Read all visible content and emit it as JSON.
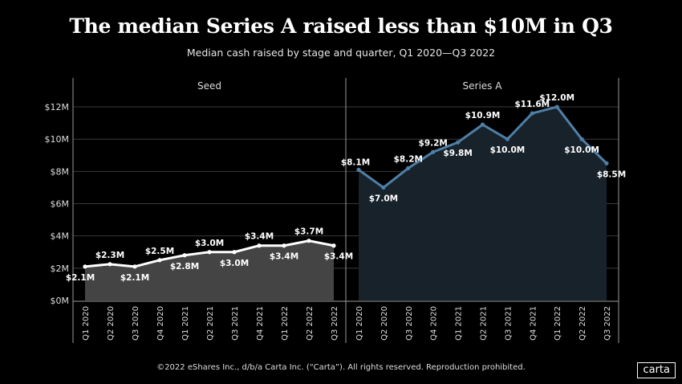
{
  "title": "The median Series A raised less than $10M in Q3",
  "subtitle": "Median cash raised by stage and quarter, Q1 2020—Q3 2022",
  "footer": "©2022 eShares Inc., d/b/a Carta Inc. (“Carta”). All rights reserved. Reproduction prohibited.",
  "logo": "carta",
  "chart_data": [
    {
      "type": "area",
      "panel_title": "Seed",
      "categories": [
        "Q1 2020",
        "Q2 2020",
        "Q3 2020",
        "Q4 2020",
        "Q1 2021",
        "Q2 2021",
        "Q3 2021",
        "Q4 2021",
        "Q1 2022",
        "Q2 2022",
        "Q3 2022"
      ],
      "values": [
        2.1,
        2.25,
        2.1,
        2.5,
        2.8,
        3.0,
        3.0,
        3.4,
        3.4,
        3.7,
        3.4
      ],
      "data_labels": [
        "$2.1M",
        "$2.3M",
        "$2.1M",
        "$2.5M",
        "$2.8M",
        "$3.0M",
        "$3.0M",
        "$3.4M",
        "$3.4M",
        "$3.7M",
        "$3.4M"
      ],
      "line_color": "#ffffff",
      "fill_color": "#444444",
      "ylim": [
        0,
        12
      ],
      "yticks": [
        "$0M",
        "$2M",
        "$4M",
        "$6M",
        "$8M",
        "$10M",
        "$12M"
      ],
      "grid": true
    },
    {
      "type": "area",
      "panel_title": "Series A",
      "categories": [
        "Q1 2020",
        "Q2 2020",
        "Q3 2020",
        "Q4 2020",
        "Q1 2021",
        "Q2 2021",
        "Q3 2021",
        "Q4 2021",
        "Q1 2022",
        "Q2 2022",
        "Q3 2022"
      ],
      "values": [
        8.1,
        7.0,
        8.2,
        9.2,
        9.8,
        10.9,
        10.0,
        11.6,
        12.0,
        10.0,
        8.5
      ],
      "data_labels": [
        "$8.1M",
        "$7.0M",
        "$8.2M",
        "$9.2M",
        "$9.8M",
        "$10.9M",
        "$10.0M",
        "$11.6M",
        "$12.0M",
        "$10.0M",
        "$8.5M"
      ],
      "line_color": "#4f7fa6",
      "fill_color": "#17222b",
      "ylim": [
        0,
        12
      ],
      "grid": true
    }
  ]
}
